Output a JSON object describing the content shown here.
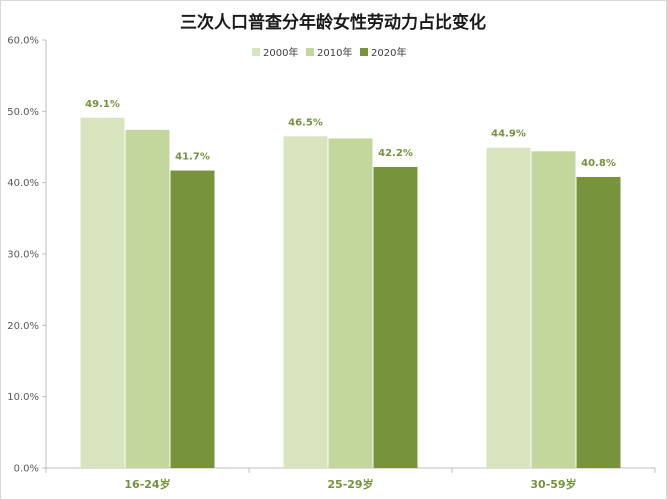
{
  "chart_data": {
    "type": "bar",
    "title": "三次人口普查分年龄女性劳动力占比变化",
    "xlabel": "",
    "ylabel": "",
    "categories": [
      "16-24岁",
      "25-29岁",
      "30-59岁"
    ],
    "series": [
      {
        "name": "2000年",
        "values": [
          49.1,
          46.5,
          44.9
        ],
        "color": "#d7e4bd",
        "show_labels": true
      },
      {
        "name": "2010年",
        "values": [
          47.4,
          46.2,
          44.4
        ],
        "color": "#c3d69b",
        "show_labels": false
      },
      {
        "name": "2020年",
        "values": [
          41.7,
          42.2,
          40.8
        ],
        "color": "#77933c",
        "show_labels": true
      }
    ],
    "ylim": [
      0,
      60
    ],
    "yticks": [
      "0.0%",
      "10.0%",
      "20.0%",
      "30.0%",
      "40.0%",
      "50.0%",
      "60.0%"
    ],
    "ytick_values": [
      0,
      10,
      20,
      30,
      40,
      50,
      60
    ],
    "value_suffix": "%",
    "grid": false,
    "legend_position": "top"
  }
}
